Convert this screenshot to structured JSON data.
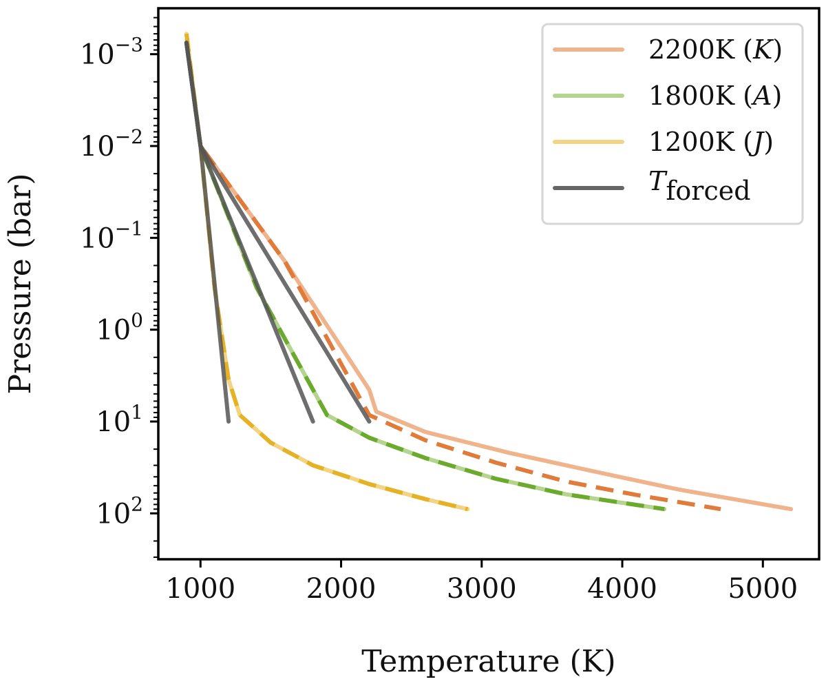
{
  "chart_data": {
    "type": "line",
    "title": "",
    "xlabel": "Temperature (K)",
    "ylabel": "Pressure (bar)",
    "xlim": [
      700,
      5400
    ],
    "ylim_log10": [
      -3.5,
      2.5
    ],
    "yscale": "log",
    "yinverted": true,
    "grid": false,
    "legend_position": "top-right",
    "x_ticks": [
      1000,
      2000,
      3000,
      4000,
      5000
    ],
    "x_tick_labels": [
      "1000",
      "2000",
      "3000",
      "4000",
      "5000"
    ],
    "y_ticks_log10": [
      -3,
      -2,
      -1,
      0,
      1,
      2
    ],
    "y_tick_labels": [
      {
        "base": "10",
        "exp": "−3"
      },
      {
        "base": "10",
        "exp": "−2"
      },
      {
        "base": "10",
        "exp": "−1"
      },
      {
        "base": "10",
        "exp": "0"
      },
      {
        "base": "10",
        "exp": "1"
      },
      {
        "base": "10",
        "exp": "2"
      }
    ],
    "legend": [
      {
        "label": "2200K",
        "tag": "K",
        "color": "#F0B48C",
        "style": "solid"
      },
      {
        "label": "1800K",
        "tag": "A",
        "color": "#B5D48E",
        "style": "solid"
      },
      {
        "label": "1200K",
        "tag": "J",
        "color": "#F2D483",
        "style": "solid"
      },
      {
        "label": "T",
        "sub": "forced",
        "color": "#666666",
        "style": "solid"
      }
    ],
    "series": [
      {
        "name": "2200K (K) solid",
        "color": "#F0B48C",
        "dash": false,
        "x": [
          900,
          1000,
          1600,
          2200,
          2250,
          2600,
          3200,
          3800,
          4400,
          5200
        ],
        "y": [
          0.00075,
          0.01,
          0.18,
          4.5,
          7.8,
          13,
          22,
          35,
          55,
          90
        ]
      },
      {
        "name": "2200K (K) dashed",
        "color": "#E07B39",
        "dash": true,
        "x": [
          900,
          1000,
          1600,
          2200,
          2600,
          3100,
          3600,
          4100,
          4700
        ],
        "y": [
          0.00075,
          0.01,
          0.18,
          8.5,
          16,
          28,
          45,
          63,
          90
        ]
      },
      {
        "name": "1800K (A) solid",
        "color": "#B5D48E",
        "dash": false,
        "x": [
          900,
          1000,
          1400,
          1800,
          1900,
          2200,
          2600,
          3100,
          3600,
          4300
        ],
        "y": [
          0.00075,
          0.01,
          0.35,
          4.5,
          8.5,
          15,
          25,
          42,
          62,
          90
        ]
      },
      {
        "name": "1800K (A) dashed",
        "color": "#6BAA2C",
        "dash": true,
        "x": [
          900,
          1000,
          1400,
          1800,
          1900,
          2200,
          2600,
          3100,
          3600,
          4300
        ],
        "y": [
          0.00075,
          0.01,
          0.35,
          4.5,
          8.5,
          15,
          25,
          42,
          62,
          90
        ]
      },
      {
        "name": "1200K (J) solid",
        "color": "#F2D483",
        "dash": false,
        "x": [
          900,
          1000,
          1100,
          1200,
          1280,
          1500,
          1800,
          2200,
          2600,
          2900
        ],
        "y": [
          0.0006,
          0.01,
          0.35,
          3.5,
          8.5,
          17,
          30,
          48,
          70,
          90
        ]
      },
      {
        "name": "1200K (J) dashed",
        "color": "#E5B225",
        "dash": true,
        "x": [
          900,
          1000,
          1100,
          1200,
          1280,
          1500,
          1800,
          2200,
          2600,
          2900
        ],
        "y": [
          0.0006,
          0.01,
          0.35,
          3.5,
          8.5,
          17,
          30,
          48,
          70,
          90
        ]
      },
      {
        "name": "Tforced 2200K",
        "color": "#555555",
        "dash": false,
        "x": [
          900,
          1000,
          2200
        ],
        "y": [
          0.00075,
          0.01,
          10
        ]
      },
      {
        "name": "Tforced 1800K",
        "color": "#555555",
        "dash": false,
        "x": [
          900,
          1000,
          1800
        ],
        "y": [
          0.00075,
          0.01,
          10
        ]
      },
      {
        "name": "Tforced 1200K",
        "color": "#555555",
        "dash": false,
        "x": [
          900,
          1000,
          1200
        ],
        "y": [
          0.00075,
          0.01,
          10
        ]
      }
    ]
  }
}
